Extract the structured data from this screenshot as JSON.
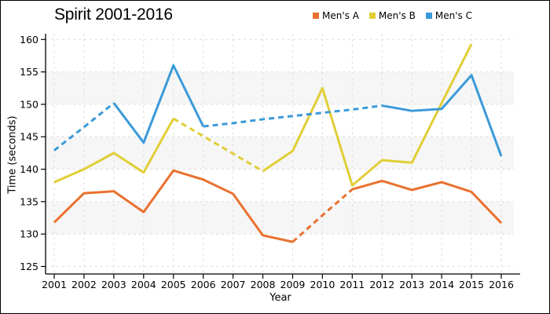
{
  "chart_data": {
    "type": "line",
    "title": "Spirit 2001-2016",
    "xlabel": "Year",
    "ylabel": "Time (seconds)",
    "legend_position": "top-right",
    "grid": "dashed",
    "categories": [
      2001,
      2002,
      2003,
      2004,
      2005,
      2006,
      2007,
      2008,
      2009,
      2010,
      2011,
      2012,
      2013,
      2014,
      2015,
      2016
    ],
    "ylim": [
      125,
      160
    ],
    "yticks": [
      125,
      130,
      135,
      140,
      145,
      150,
      155,
      160
    ],
    "plot_bands": [
      [
        130,
        135
      ],
      [
        140,
        145
      ],
      [
        150,
        155
      ]
    ],
    "colors": {
      "band": "#f6f6f6",
      "grid": "#dedede",
      "axis": "#000000"
    },
    "series": [
      {
        "name": "Men's A",
        "color": "#e9712f",
        "values": [
          131.8,
          136.3,
          136.6,
          133.4,
          139.8,
          138.4,
          136.2,
          129.8,
          128.8,
          132.9,
          136.9,
          138.2,
          136.8,
          138.0,
          136.5,
          131.7
        ],
        "dashed_spans": [
          [
            2009,
            2011
          ]
        ]
      },
      {
        "name": "Men's B",
        "color": "#e0ce36",
        "values": [
          138.0,
          140.0,
          142.5,
          139.5,
          147.8,
          145.1,
          142.4,
          139.7,
          142.8,
          152.5,
          137.5,
          141.4,
          141.0,
          150.2,
          159.3,
          null
        ],
        "dashed_spans": [
          [
            2005,
            2008
          ]
        ]
      },
      {
        "name": "Men's C",
        "color": "#3b9ad9",
        "values": [
          142.9,
          146.5,
          150.2,
          144.1,
          156.0,
          146.6,
          147.1,
          147.7,
          148.2,
          148.7,
          149.2,
          149.8,
          149.0,
          149.3,
          154.5,
          142.0
        ],
        "dashed_spans": [
          [
            2001,
            2003
          ],
          [
            2006,
            2012
          ]
        ]
      }
    ]
  }
}
